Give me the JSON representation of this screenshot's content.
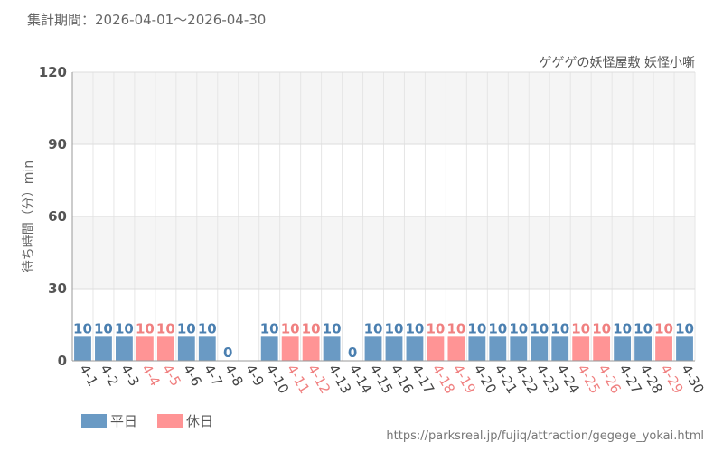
{
  "chart_data": {
    "type": "bar",
    "period_text": "集計期間：2026-04-01～2026-04-30",
    "subtitle": "ゲゲゲの妖怪屋敷 妖怪小噺",
    "ylabel": "待ち時間（分）min",
    "ylim": [
      0,
      120
    ],
    "yticks": [
      0,
      30,
      60,
      90,
      120
    ],
    "categories": [
      "4-1",
      "4-2",
      "4-3",
      "4-4",
      "4-5",
      "4-6",
      "4-7",
      "4-8",
      "4-9",
      "4-10",
      "4-11",
      "4-12",
      "4-13",
      "4-14",
      "4-15",
      "4-16",
      "4-17",
      "4-18",
      "4-19",
      "4-20",
      "4-21",
      "4-22",
      "4-23",
      "4-24",
      "4-25",
      "4-26",
      "4-27",
      "4-28",
      "4-29",
      "4-30"
    ],
    "values": [
      10,
      10,
      10,
      10,
      10,
      10,
      10,
      0,
      null,
      10,
      10,
      10,
      10,
      0,
      10,
      10,
      10,
      10,
      10,
      10,
      10,
      10,
      10,
      10,
      10,
      10,
      10,
      10,
      10,
      10
    ],
    "holiday": [
      false,
      false,
      false,
      true,
      true,
      false,
      false,
      false,
      false,
      false,
      true,
      true,
      false,
      false,
      false,
      false,
      false,
      true,
      true,
      false,
      false,
      false,
      false,
      false,
      true,
      true,
      false,
      false,
      true,
      false
    ],
    "series": [
      {
        "name": "平日",
        "color": "#6a9ac4"
      },
      {
        "name": "休日",
        "color": "#ff9495"
      }
    ],
    "label_colors": {
      "weekday": "#4a7fb0",
      "holiday": "#f08080"
    },
    "source_url": "https://parksreal.jp/fujiq/attraction/gegege_yokai.html"
  }
}
